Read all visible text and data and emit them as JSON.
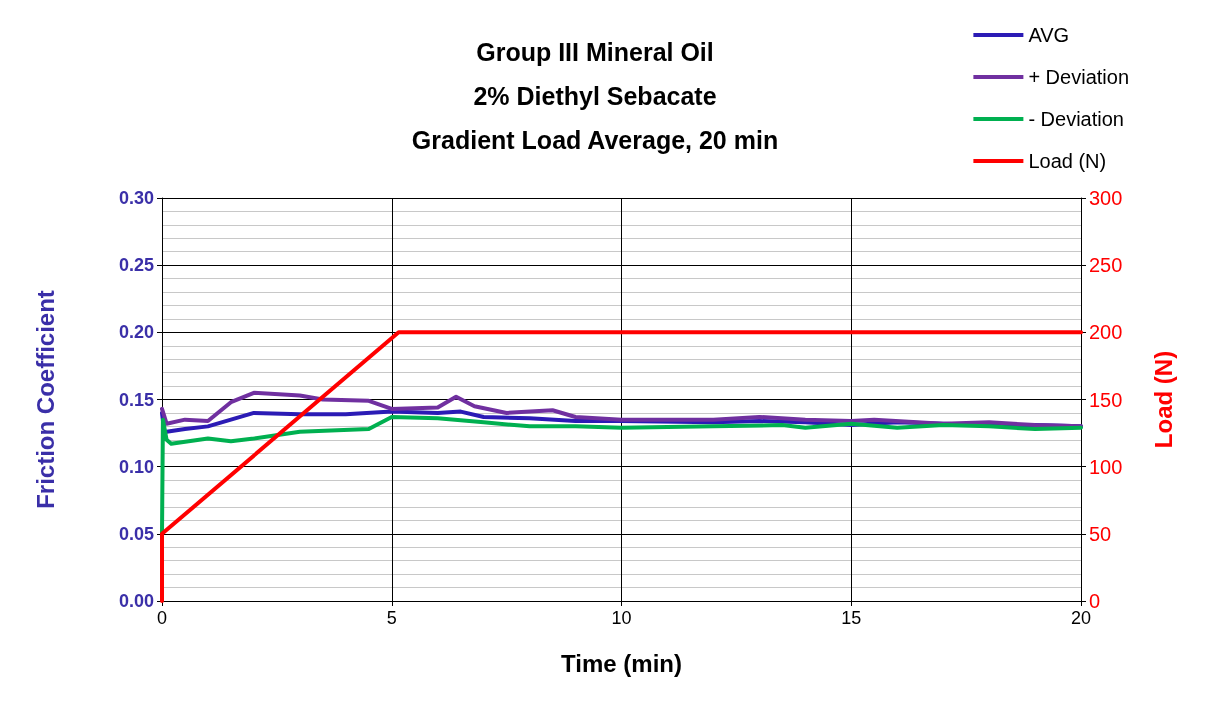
{
  "chart_data": {
    "type": "line",
    "title": "Group III Mineral Oil\n2% Diethyl Sebacate\nGradient Load Average, 20 min",
    "xlabel": "Time (min)",
    "ylabel": "Friction Coefficient",
    "y2label": "Load (N)",
    "xlim": [
      0,
      20
    ],
    "xticks": [
      0,
      5,
      10,
      15,
      20
    ],
    "ylim": [
      0,
      0.3
    ],
    "yticks": [
      {
        "value": 0,
        "label": "0.00"
      },
      {
        "value": 0.05,
        "label": "0.05"
      },
      {
        "value": 0.1,
        "label": "0.10"
      },
      {
        "value": 0.15,
        "label": "0.15"
      },
      {
        "value": 0.2,
        "label": "0.20"
      },
      {
        "value": 0.25,
        "label": "0.25"
      },
      {
        "value": 0.3,
        "label": "0.30"
      }
    ],
    "y2lim": [
      0,
      300
    ],
    "y2ticks": [
      0,
      50,
      100,
      150,
      200,
      250,
      300
    ],
    "grid": true,
    "legend": "top right",
    "marker": "none",
    "line_style": "solid",
    "series": [
      {
        "name": "AVG",
        "color": "#2b1bb5",
        "x": [
          0,
          0.05,
          0.1,
          0.5,
          1,
          1.5,
          2,
          3,
          4,
          5,
          6,
          6.5,
          7,
          8,
          9,
          10,
          12,
          13,
          14,
          15,
          16,
          17,
          18,
          19,
          20
        ],
        "values": [
          0.14,
          0.126,
          0.126,
          0.128,
          0.13,
          0.135,
          0.14,
          0.139,
          0.139,
          0.141,
          0.14,
          0.141,
          0.137,
          0.136,
          0.134,
          0.134,
          0.133,
          0.134,
          0.133,
          0.131,
          0.133,
          0.132,
          0.131,
          0.131,
          0.13
        ]
      },
      {
        "name": "+ Deviation",
        "color": "#7030a0",
        "x": [
          0,
          0.1,
          0.5,
          1,
          1.5,
          2,
          3,
          3.5,
          4.5,
          5,
          6,
          6.4,
          6.8,
          7.5,
          8.5,
          9,
          10,
          12,
          13,
          14,
          15,
          15.5,
          17,
          18,
          19,
          20
        ],
        "values": [
          0.143,
          0.132,
          0.135,
          0.134,
          0.148,
          0.155,
          0.153,
          0.15,
          0.149,
          0.143,
          0.144,
          0.152,
          0.145,
          0.14,
          0.142,
          0.137,
          0.135,
          0.135,
          0.137,
          0.135,
          0.134,
          0.135,
          0.132,
          0.133,
          0.131,
          0.13
        ]
      },
      {
        "name": "- Deviation",
        "color": "#00b050",
        "x": [
          0,
          0.02,
          0.1,
          0.2,
          1,
          1.5,
          2,
          3,
          4.5,
          5,
          6,
          7,
          8,
          9,
          10,
          12,
          13.5,
          14,
          15,
          16,
          17,
          18,
          19,
          20
        ],
        "values": [
          0.05,
          0.135,
          0.12,
          0.117,
          0.121,
          0.119,
          0.121,
          0.126,
          0.128,
          0.137,
          0.136,
          0.133,
          0.13,
          0.13,
          0.129,
          0.13,
          0.131,
          0.129,
          0.132,
          0.129,
          0.131,
          0.13,
          0.128,
          0.129
        ]
      },
      {
        "name": "Load (N)",
        "color": "#ff0000",
        "axis": "y2",
        "x": [
          0,
          0,
          5.15,
          20
        ],
        "values": [
          0,
          50,
          200,
          200
        ]
      }
    ]
  }
}
